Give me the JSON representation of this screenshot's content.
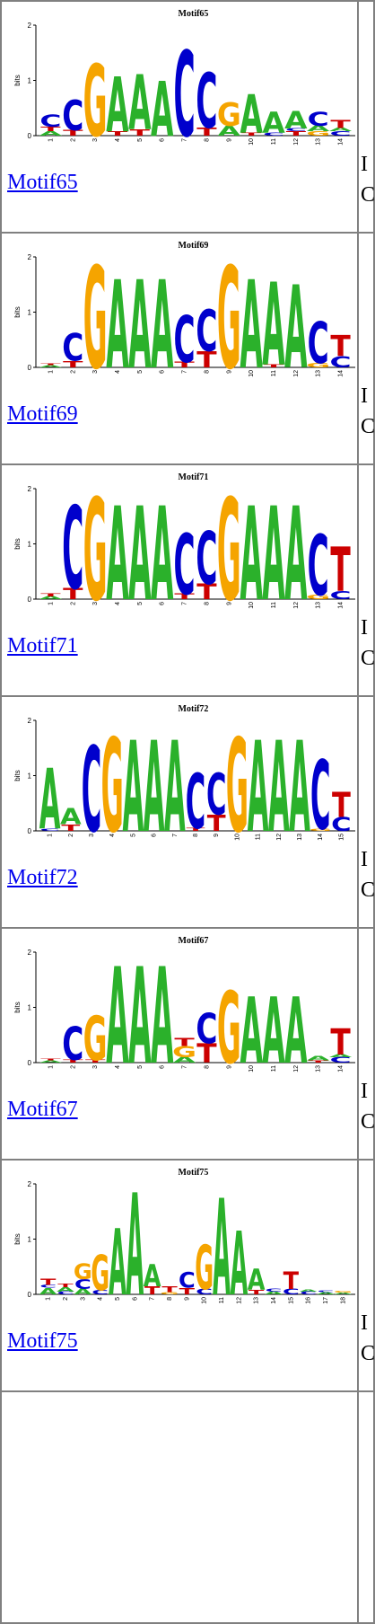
{
  "colors": {
    "A": "#2bb12b",
    "C": "#0000cc",
    "G": "#f5a400",
    "T": "#cc0000",
    "link": "#0000ee"
  },
  "y_axis_label": "bits",
  "y_ticks": [
    "0",
    "1",
    "2"
  ],
  "rows": [
    {
      "title": "Motif65",
      "link_text": "Motif65",
      "side_line1": "I",
      "side_line2": "C",
      "positions": [
        [
          [
            "A",
            0.08
          ],
          [
            "T",
            0.08
          ],
          [
            "C",
            0.22
          ]
        ],
        [
          [
            "T",
            0.1
          ],
          [
            "C",
            0.55
          ]
        ],
        [
          [
            "G",
            1.3
          ]
        ],
        [
          [
            "T",
            0.08
          ],
          [
            "A",
            1.0
          ]
        ],
        [
          [
            "T",
            0.12
          ],
          [
            "A",
            1.0
          ]
        ],
        [
          [
            "A",
            1.0
          ]
        ],
        [
          [
            "C",
            1.55
          ]
        ],
        [
          [
            "T",
            0.15
          ],
          [
            "C",
            1.0
          ]
        ],
        [
          [
            "A",
            0.18
          ],
          [
            "G",
            0.42
          ]
        ],
        [
          [
            "T",
            0.05
          ],
          [
            "A",
            0.7
          ]
        ],
        [
          [
            "C",
            0.05
          ],
          [
            "A",
            0.38
          ]
        ],
        [
          [
            "T",
            0.08
          ],
          [
            "C",
            0.05
          ],
          [
            "A",
            0.32
          ]
        ],
        [
          [
            "G",
            0.08
          ],
          [
            "A",
            0.1
          ],
          [
            "C",
            0.25
          ]
        ],
        [
          [
            "C",
            0.08
          ],
          [
            "A",
            0.06
          ],
          [
            "T",
            0.15
          ]
        ]
      ]
    },
    {
      "title": "Motif69",
      "link_text": "Motif69",
      "side_line1": "I",
      "side_line2": "C",
      "positions": [
        [
          [
            "A",
            0.04
          ],
          [
            "T",
            0.03
          ]
        ],
        [
          [
            "T",
            0.12
          ],
          [
            "C",
            0.5
          ]
        ],
        [
          [
            "G",
            1.85
          ]
        ],
        [
          [
            "A",
            1.6
          ]
        ],
        [
          [
            "A",
            1.6
          ]
        ],
        [
          [
            "A",
            1.6
          ]
        ],
        [
          [
            "T",
            0.1
          ],
          [
            "C",
            0.85
          ]
        ],
        [
          [
            "T",
            0.3
          ],
          [
            "C",
            0.75
          ]
        ],
        [
          [
            "G",
            1.85
          ]
        ],
        [
          [
            "A",
            1.6
          ]
        ],
        [
          [
            "T",
            0.05
          ],
          [
            "A",
            1.5
          ]
        ],
        [
          [
            "A",
            1.5
          ]
        ],
        [
          [
            "G",
            0.08
          ],
          [
            "C",
            0.75
          ]
        ],
        [
          [
            "C",
            0.2
          ],
          [
            "T",
            0.38
          ]
        ]
      ]
    },
    {
      "title": "Motif71",
      "link_text": "Motif71",
      "side_line1": "I",
      "side_line2": "C",
      "positions": [
        [
          [
            "A",
            0.05
          ],
          [
            "T",
            0.05
          ]
        ],
        [
          [
            "T",
            0.2
          ],
          [
            "C",
            1.5
          ]
        ],
        [
          [
            "G",
            1.85
          ]
        ],
        [
          [
            "A",
            1.7
          ]
        ],
        [
          [
            "A",
            1.7
          ]
        ],
        [
          [
            "A",
            1.7
          ]
        ],
        [
          [
            "T",
            0.1
          ],
          [
            "C",
            1.1
          ]
        ],
        [
          [
            "T",
            0.28
          ],
          [
            "C",
            0.95
          ]
        ],
        [
          [
            "G",
            1.85
          ]
        ],
        [
          [
            "A",
            1.7
          ]
        ],
        [
          [
            "A",
            1.7
          ]
        ],
        [
          [
            "A",
            1.7
          ]
        ],
        [
          [
            "G",
            0.08
          ],
          [
            "C",
            1.1
          ]
        ],
        [
          [
            "C",
            0.15
          ],
          [
            "T",
            0.8
          ]
        ]
      ]
    },
    {
      "title": "Motif72",
      "link_text": "Motif72",
      "side_line1": "I",
      "side_line2": "C",
      "positions": [
        [
          [
            "C",
            0.04
          ],
          [
            "A",
            1.1
          ]
        ],
        [
          [
            "T",
            0.12
          ],
          [
            "A",
            0.3
          ]
        ],
        [
          [
            "C",
            1.55
          ]
        ],
        [
          [
            "G",
            1.7
          ]
        ],
        [
          [
            "A",
            1.65
          ]
        ],
        [
          [
            "A",
            1.65
          ]
        ],
        [
          [
            "A",
            1.65
          ]
        ],
        [
          [
            "T",
            0.05
          ],
          [
            "C",
            1.0
          ]
        ],
        [
          [
            "T",
            0.3
          ],
          [
            "C",
            0.75
          ]
        ],
        [
          [
            "G",
            1.7
          ]
        ],
        [
          [
            "A",
            1.65
          ]
        ],
        [
          [
            "A",
            1.65
          ]
        ],
        [
          [
            "A",
            1.65
          ]
        ],
        [
          [
            "G",
            0.04
          ],
          [
            "C",
            1.25
          ]
        ],
        [
          [
            "C",
            0.25
          ],
          [
            "T",
            0.45
          ]
        ]
      ]
    },
    {
      "title": "Motif67",
      "link_text": "Motif67",
      "side_line1": "I",
      "side_line2": "C",
      "positions": [
        [
          [
            "A",
            0.04
          ],
          [
            "T",
            0.03
          ]
        ],
        [
          [
            "T",
            0.05
          ],
          [
            "C",
            0.6
          ]
        ],
        [
          [
            "T",
            0.05
          ],
          [
            "G",
            0.8
          ]
        ],
        [
          [
            "A",
            1.75
          ]
        ],
        [
          [
            "A",
            1.75
          ]
        ],
        [
          [
            "A",
            1.75
          ]
        ],
        [
          [
            "A",
            0.1
          ],
          [
            "G",
            0.2
          ],
          [
            "T",
            0.15
          ]
        ],
        [
          [
            "T",
            0.35
          ],
          [
            "C",
            0.55
          ]
        ],
        [
          [
            "G",
            1.3
          ]
        ],
        [
          [
            "A",
            1.2
          ]
        ],
        [
          [
            "A",
            1.2
          ]
        ],
        [
          [
            "A",
            1.2
          ]
        ],
        [
          [
            "T",
            0.04
          ],
          [
            "A",
            0.08
          ]
        ],
        [
          [
            "C",
            0.1
          ],
          [
            "A",
            0.05
          ],
          [
            "T",
            0.48
          ]
        ]
      ]
    },
    {
      "title": "Motif75",
      "link_text": "Motif75",
      "side_line1": "I",
      "side_line2": "C",
      "positions": [
        [
          [
            "A",
            0.12
          ],
          [
            "C",
            0.05
          ],
          [
            "T",
            0.12
          ]
        ],
        [
          [
            "C",
            0.05
          ],
          [
            "A",
            0.08
          ],
          [
            "T",
            0.06
          ]
        ],
        [
          [
            "A",
            0.1
          ],
          [
            "C",
            0.18
          ],
          [
            "G",
            0.28
          ]
        ],
        [
          [
            "C",
            0.08
          ],
          [
            "G",
            0.65
          ]
        ],
        [
          [
            "A",
            1.2
          ]
        ],
        [
          [
            "A",
            1.85
          ]
        ],
        [
          [
            "T",
            0.15
          ],
          [
            "A",
            0.4
          ]
        ],
        [
          [
            "G",
            0.04
          ],
          [
            "T",
            0.1
          ]
        ],
        [
          [
            "T",
            0.12
          ],
          [
            "C",
            0.28
          ]
        ],
        [
          [
            "C",
            0.1
          ],
          [
            "G",
            0.8
          ]
        ],
        [
          [
            "A",
            1.75
          ]
        ],
        [
          [
            "A",
            1.15
          ]
        ],
        [
          [
            "T",
            0.08
          ],
          [
            "A",
            0.38
          ]
        ],
        [
          [
            "A",
            0.05
          ],
          [
            "C",
            0.05
          ]
        ],
        [
          [
            "C",
            0.1
          ],
          [
            "T",
            0.32
          ]
        ],
        [
          [
            "C",
            0.05
          ],
          [
            "A",
            0.04
          ]
        ],
        [
          [
            "A",
            0.04
          ],
          [
            "C",
            0.03
          ]
        ],
        [
          [
            "A",
            0.03
          ],
          [
            "G",
            0.03
          ]
        ]
      ]
    }
  ]
}
